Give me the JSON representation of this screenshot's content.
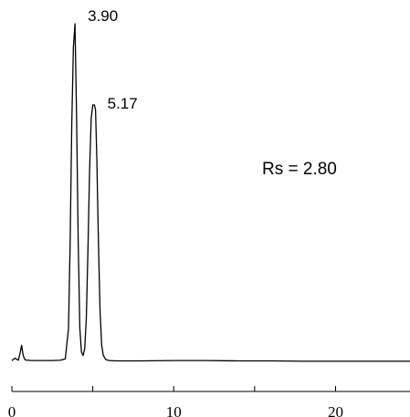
{
  "chart_data": {
    "type": "line",
    "title": "",
    "xlabel": "",
    "ylabel": "",
    "xlim": [
      0,
      24.6
    ],
    "ylim": [
      0,
      1.0
    ],
    "x_ticks": [
      0,
      10,
      20
    ],
    "x_minor_ticks": [
      0,
      5,
      10,
      15,
      20
    ],
    "grid": false,
    "series": [
      {
        "x": [
          0.0,
          0.2,
          0.4,
          0.5,
          0.6,
          0.7,
          0.8,
          0.9,
          1.0,
          1.2,
          1.5,
          2.0,
          2.5,
          3.0,
          3.3,
          3.5,
          3.6,
          3.7,
          3.8,
          3.9,
          4.0,
          4.1,
          4.2,
          4.3,
          4.4,
          4.5,
          4.6,
          4.7,
          4.8,
          4.9,
          5.0,
          5.1,
          5.17,
          5.25,
          5.35,
          5.45,
          5.55,
          5.65,
          5.8,
          6.0,
          6.5,
          8.0,
          10.0,
          12.0,
          14.0,
          16.0,
          18.0,
          20.0,
          22.0,
          24.6
        ],
        "y": [
          0.005,
          0.012,
          0.006,
          0.025,
          0.05,
          0.02,
          0.008,
          0.006,
          0.006,
          0.005,
          0.005,
          0.005,
          0.005,
          0.006,
          0.01,
          0.1,
          0.35,
          0.7,
          0.93,
          1.0,
          0.72,
          0.35,
          0.1,
          0.03,
          0.02,
          0.04,
          0.13,
          0.33,
          0.56,
          0.72,
          0.76,
          0.76,
          0.745,
          0.6,
          0.35,
          0.15,
          0.05,
          0.02,
          0.008,
          0.005,
          0.004,
          0.004,
          0.005,
          0.005,
          0.004,
          0.004,
          0.003,
          0.003,
          0.003,
          0.003
        ]
      }
    ],
    "annotations": {
      "peak1": {
        "text": "3.90",
        "x": 3.9
      },
      "peak2": {
        "text": "5.17",
        "x": 5.17
      },
      "resolution": "Rs = 2.80"
    }
  }
}
